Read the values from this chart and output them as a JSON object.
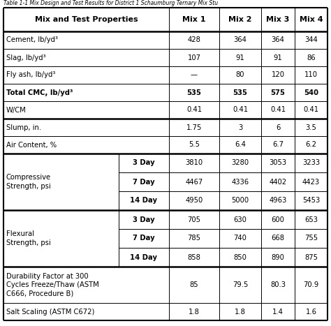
{
  "title": "Table 1-1 Mix Design and Test Results for District 1 Schaumburg Ternary Mix Stu",
  "col_labels": [
    "Mix and Test Properties",
    "Mix 1",
    "Mix 2",
    "Mix 3",
    "Mix 4"
  ],
  "rows_basic": [
    {
      "label": "Cement, lb/yd³",
      "v1": "428",
      "v2": "364",
      "v3": "364",
      "v4": "344",
      "bold": false
    },
    {
      "label": "Slag, lb/yd³",
      "v1": "107",
      "v2": "91",
      "v3": "91",
      "v4": "86",
      "bold": false
    },
    {
      "label": "Fly ash, lb/yd³",
      "v1": "—",
      "v2": "80",
      "v3": "120",
      "v4": "110",
      "bold": false
    },
    {
      "label": "Total CMC, lb/yd³",
      "v1": "535",
      "v2": "535",
      "v3": "575",
      "v4": "540",
      "bold": true
    },
    {
      "label": "W/CM",
      "v1": "0.41",
      "v2": "0.41",
      "v3": "0.41",
      "v4": "0.41",
      "bold": false
    }
  ],
  "rows_slump": [
    {
      "label": "Slump, in.",
      "v1": "1.75",
      "v2": "3",
      "v3": "6",
      "v4": "3.5"
    },
    {
      "label": "Air Content, %",
      "v1": "5.5",
      "v2": "6.4",
      "v3": "6.7",
      "v4": "6.2"
    }
  ],
  "compressive_label": "Compressive\nStrength, psi",
  "rows_comp": [
    {
      "day": "3 Day",
      "v1": "3810",
      "v2": "3280",
      "v3": "3053",
      "v4": "3233"
    },
    {
      "day": "7 Day",
      "v1": "4467",
      "v2": "4336",
      "v3": "4402",
      "v4": "4423"
    },
    {
      "day": "14 Day",
      "v1": "4950",
      "v2": "5000",
      "v3": "4963",
      "v4": "5453"
    }
  ],
  "flexural_label": "Flexural\nStrength, psi",
  "rows_flex": [
    {
      "day": "3 Day",
      "v1": "705",
      "v2": "630",
      "v3": "600",
      "v4": "653"
    },
    {
      "day": "7 Day",
      "v1": "785",
      "v2": "740",
      "v3": "668",
      "v4": "755"
    },
    {
      "day": "14 Day",
      "v1": "858",
      "v2": "850",
      "v3": "890",
      "v4": "875"
    }
  ],
  "dur_label": "Durability Factor at 300\nCycles Freeze/Thaw (ASTM\nC666, Procedure B)",
  "dur_vals": [
    "85",
    "79.5",
    "80.3",
    "70.9"
  ],
  "salt_label": "Salt Scaling (ASTM C672)",
  "salt_vals": [
    "1.8",
    "1.8",
    "1.4",
    "1.6"
  ],
  "bg": "#ffffff",
  "fg": "#000000",
  "lw_outer": 1.5,
  "lw_inner": 0.7,
  "lw_thick": 1.8,
  "fontsize": 7.2,
  "header_fontsize": 8.0
}
